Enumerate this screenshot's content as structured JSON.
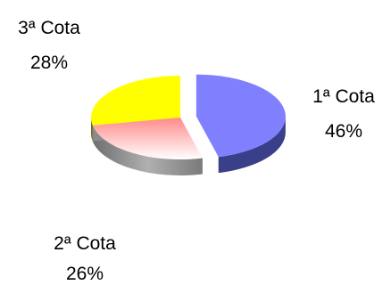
{
  "chart_data": {
    "type": "pie",
    "title": "",
    "slices": [
      {
        "label": "1ª Cota",
        "value": 46,
        "value_label": "46%",
        "color": "#8080ff",
        "side_color": "#3a3f8a",
        "exploded": true
      },
      {
        "label": "2ª Cota",
        "value": 26,
        "value_label": "26%",
        "color": "#ffb6b6",
        "side_color": "#8a8a8a",
        "exploded": false
      },
      {
        "label": "3ª Cota",
        "value": 28,
        "value_label": "28%",
        "color": "#ffff00",
        "side_color": "#6b6b1a",
        "exploded": false
      }
    ],
    "legend": "none",
    "style": "3d-exploded"
  }
}
